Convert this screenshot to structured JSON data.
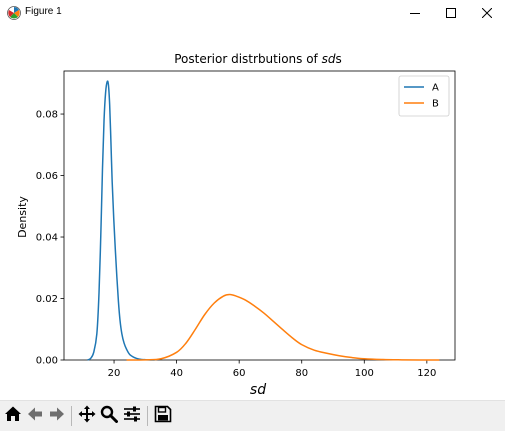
{
  "window": {
    "title": "Figure 1",
    "controls": [
      "minimize",
      "maximize",
      "close"
    ]
  },
  "toolbar": {
    "buttons": [
      "home-icon",
      "back-icon",
      "forward-icon",
      "pan-icon",
      "zoom-icon",
      "configure-subplots-icon",
      "save-icon"
    ]
  },
  "chart_data": {
    "type": "line",
    "title": "Posterior distrbutions of sds",
    "title_plain": "Posterior distrbutions of ",
    "title_italic": "sd",
    "title_suffix": "s",
    "xlabel": "sd",
    "ylabel": "Density",
    "xlim": [
      4,
      129
    ],
    "ylim": [
      0,
      0.094
    ],
    "xticks": [
      20,
      40,
      60,
      80,
      100,
      120
    ],
    "yticks": [
      0.0,
      0.02,
      0.04,
      0.06,
      0.08
    ],
    "ytick_labels": [
      "0.00",
      "0.02",
      "0.04",
      "0.06",
      "0.08"
    ],
    "grid": false,
    "legend_position": "top-right",
    "series": [
      {
        "name": "A",
        "color": "#1f77b4",
        "x": [
          11.5,
          12.5,
          13.5,
          14.5,
          15.2,
          15.8,
          16.3,
          16.8,
          17.3,
          17.8,
          18.2,
          18.6,
          19.0,
          19.4,
          19.9,
          20.4,
          20.9,
          21.4,
          21.9,
          22.5,
          23.2,
          24.0,
          25.0,
          26.5,
          28.0,
          30.0,
          33.0
        ],
        "y": [
          0.0,
          0.0005,
          0.0025,
          0.0085,
          0.022,
          0.042,
          0.062,
          0.078,
          0.087,
          0.0905,
          0.0895,
          0.083,
          0.071,
          0.058,
          0.046,
          0.036,
          0.027,
          0.019,
          0.013,
          0.0085,
          0.0055,
          0.0035,
          0.0018,
          0.0008,
          0.0003,
          0.0001,
          0.0
        ]
      },
      {
        "name": "B",
        "color": "#ff7f0e",
        "x": [
          24.0,
          30.0,
          35.0,
          40.0,
          43.0,
          46.0,
          49.0,
          52.0,
          55.0,
          57.0,
          59.0,
          62.0,
          65.0,
          68.0,
          71.0,
          74.0,
          77.0,
          80.0,
          84.0,
          88.0,
          92.0,
          96.0,
          100.0,
          106.0,
          112.0,
          118.0,
          124.0
        ],
        "y": [
          0.0,
          5e-05,
          0.0004,
          0.0025,
          0.0055,
          0.01,
          0.0148,
          0.0185,
          0.0208,
          0.0213,
          0.0208,
          0.0195,
          0.0175,
          0.0152,
          0.0125,
          0.0098,
          0.0072,
          0.005,
          0.0032,
          0.0022,
          0.0014,
          0.0008,
          0.0004,
          0.00015,
          6e-05,
          2e-05,
          0.0
        ]
      }
    ]
  }
}
